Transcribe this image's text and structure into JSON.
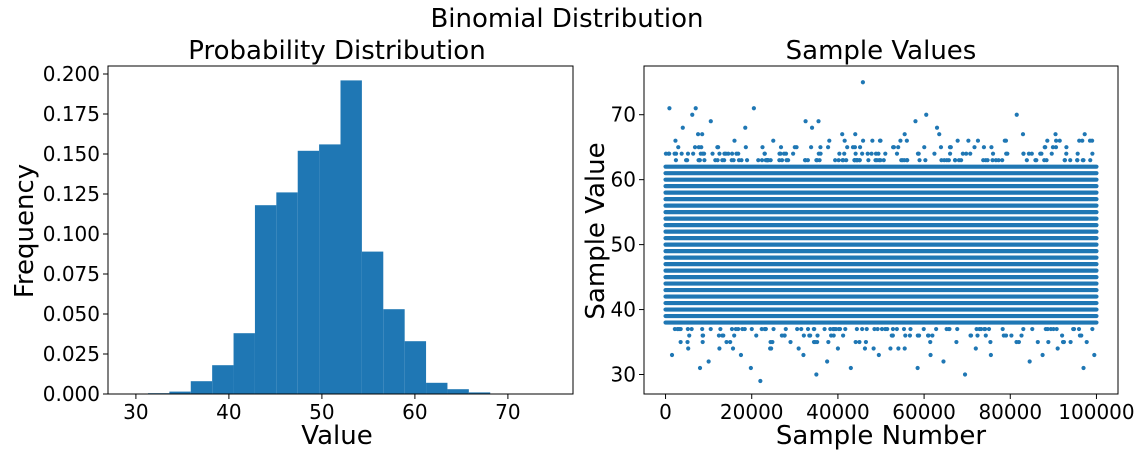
{
  "figure": {
    "title": "Binomial Distribution"
  },
  "chart_data": [
    {
      "type": "bar",
      "title": "Probability Distribution",
      "xlabel": "Value",
      "ylabel": "Frequency",
      "xlim": [
        27,
        77
      ],
      "ylim": [
        0,
        0.205
      ],
      "xticks": [
        "30",
        "40",
        "50",
        "60",
        "70"
      ],
      "yticks": [
        "0.000",
        "0.025",
        "0.050",
        "0.075",
        "0.100",
        "0.125",
        "0.150",
        "0.175",
        "0.200"
      ],
      "bin_edges": [
        29.0,
        31.3,
        33.6,
        35.9,
        38.2,
        40.5,
        42.8,
        45.1,
        47.4,
        49.7,
        52.0,
        54.3,
        56.6,
        58.9,
        61.2,
        63.5,
        65.8,
        68.1,
        70.4,
        72.7,
        75.0
      ],
      "values": [
        0.0001,
        0.0005,
        0.0015,
        0.008,
        0.018,
        0.038,
        0.118,
        0.126,
        0.152,
        0.156,
        0.196,
        0.089,
        0.053,
        0.033,
        0.007,
        0.003,
        0.001,
        0.0002,
        0.0001,
        0.0001
      ],
      "color": "#1f77b4",
      "grid": false
    },
    {
      "type": "scatter",
      "title": "Sample Values",
      "xlabel": "Sample Number",
      "ylabel": "Sample Value",
      "xlim": [
        -5000,
        105000
      ],
      "ylim": [
        27,
        77.5
      ],
      "xticks": [
        "0",
        "20000",
        "40000",
        "60000",
        "80000",
        "100000"
      ],
      "yticks": [
        "30",
        "40",
        "50",
        "60",
        "70"
      ],
      "n_samples": 100000,
      "dense_band": [
        38,
        62
      ],
      "sparse_points": {
        "x": [
          900,
          2300,
          4000,
          6200,
          7000,
          8500,
          10500,
          12200,
          14000,
          16000,
          18500,
          20500,
          22500,
          25000,
          27500,
          30000,
          32500,
          34000,
          35500,
          38000,
          41000,
          43500,
          45800,
          48000,
          51000,
          53000,
          56000,
          58000,
          60500,
          63000,
          66000,
          69000,
          72500,
          76000,
          79000,
          81500,
          85000,
          88000,
          90500,
          93000,
          96000,
          98500,
          1500,
          3500,
          5500,
          8000,
          10000,
          12500,
          15000,
          17500,
          19800,
          22000,
          24500,
          27000,
          29000,
          32000,
          35000,
          37500,
          40000,
          43000,
          46500,
          49500,
          52500,
          55500,
          58500,
          61500,
          64500,
          67500,
          69500,
          72000,
          75500,
          78500,
          82000,
          84500,
          87500,
          91000,
          94000,
          97000,
          99500
        ],
        "y": [
          71,
          66,
          68,
          70,
          71,
          67,
          69,
          65,
          64,
          66,
          68,
          71,
          65,
          66,
          64,
          65,
          69,
          68,
          69,
          66,
          67,
          65,
          75,
          66,
          64,
          65,
          66,
          69,
          70,
          68,
          65,
          64,
          66,
          64,
          66,
          70,
          64,
          65,
          67,
          64,
          66,
          66,
          33,
          35,
          36,
          31,
          32,
          34,
          35,
          33,
          31,
          29,
          34,
          36,
          35,
          33,
          30,
          32,
          34,
          31,
          35,
          33,
          36,
          34,
          31,
          33,
          32,
          35,
          30,
          34,
          33,
          36,
          35,
          32,
          33,
          34,
          35,
          31,
          33
        ]
      },
      "color": "#1f77b4",
      "grid": false
    }
  ]
}
